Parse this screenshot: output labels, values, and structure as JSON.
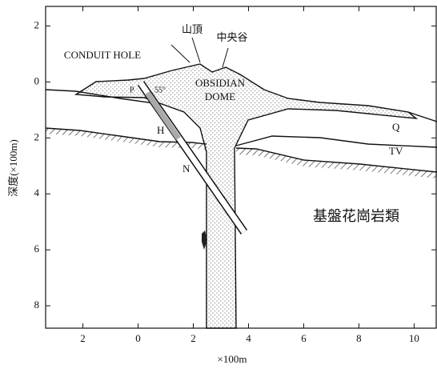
{
  "axes": {
    "x": {
      "label": "×100m",
      "lim": [
        -3.35,
        10.8
      ],
      "ticks": [
        {
          "value": -2,
          "label": "2"
        },
        0,
        2,
        4,
        6,
        8,
        10
      ]
    },
    "y": {
      "label": "深度(×100m)",
      "lim": [
        -2.7,
        8.8
      ],
      "ticks": [
        {
          "value": -2,
          "label": "2"
        },
        0,
        2,
        4,
        6,
        8
      ]
    }
  },
  "labels": {
    "summit": "山頂",
    "central_valley": "中央谷",
    "conduit_hole": "CONDUIT HOLE",
    "dome_1": "OBSIDIAN",
    "dome_2": "DOME",
    "p": "P",
    "angle": "55°",
    "h": "H",
    "n": "N",
    "q": "Q",
    "tv": "TV",
    "basement": "基盤花崗岩類"
  }
}
